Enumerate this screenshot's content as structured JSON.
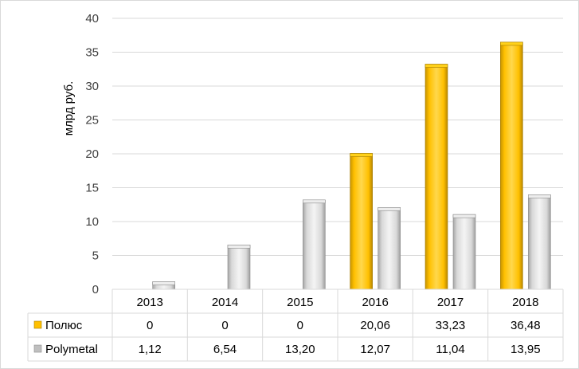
{
  "chart_data": {
    "type": "bar",
    "title": "",
    "xlabel": "",
    "ylabel": "млрд руб.",
    "ylim": [
      0,
      40
    ],
    "yticks": [
      "0",
      "5",
      "10",
      "15",
      "20",
      "25",
      "30",
      "35",
      "40"
    ],
    "categories": [
      "2013",
      "2014",
      "2015",
      "2016",
      "2017",
      "2018"
    ],
    "grid": true,
    "legend": "data-table",
    "series": [
      {
        "name": "Полюс",
        "color": "#FFC000",
        "values": [
          0,
          0,
          0,
          20.06,
          33.23,
          36.48
        ],
        "labels": [
          "0",
          "0",
          "0",
          "20,06",
          "33,23",
          "36,48"
        ]
      },
      {
        "name": "Polymetal",
        "color": "#D9D9D9",
        "values": [
          1.12,
          6.54,
          13.2,
          12.07,
          11.04,
          13.95
        ],
        "labels": [
          "1,12",
          "6,54",
          "13,20",
          "12,07",
          "11,04",
          "13,95"
        ]
      }
    ]
  }
}
